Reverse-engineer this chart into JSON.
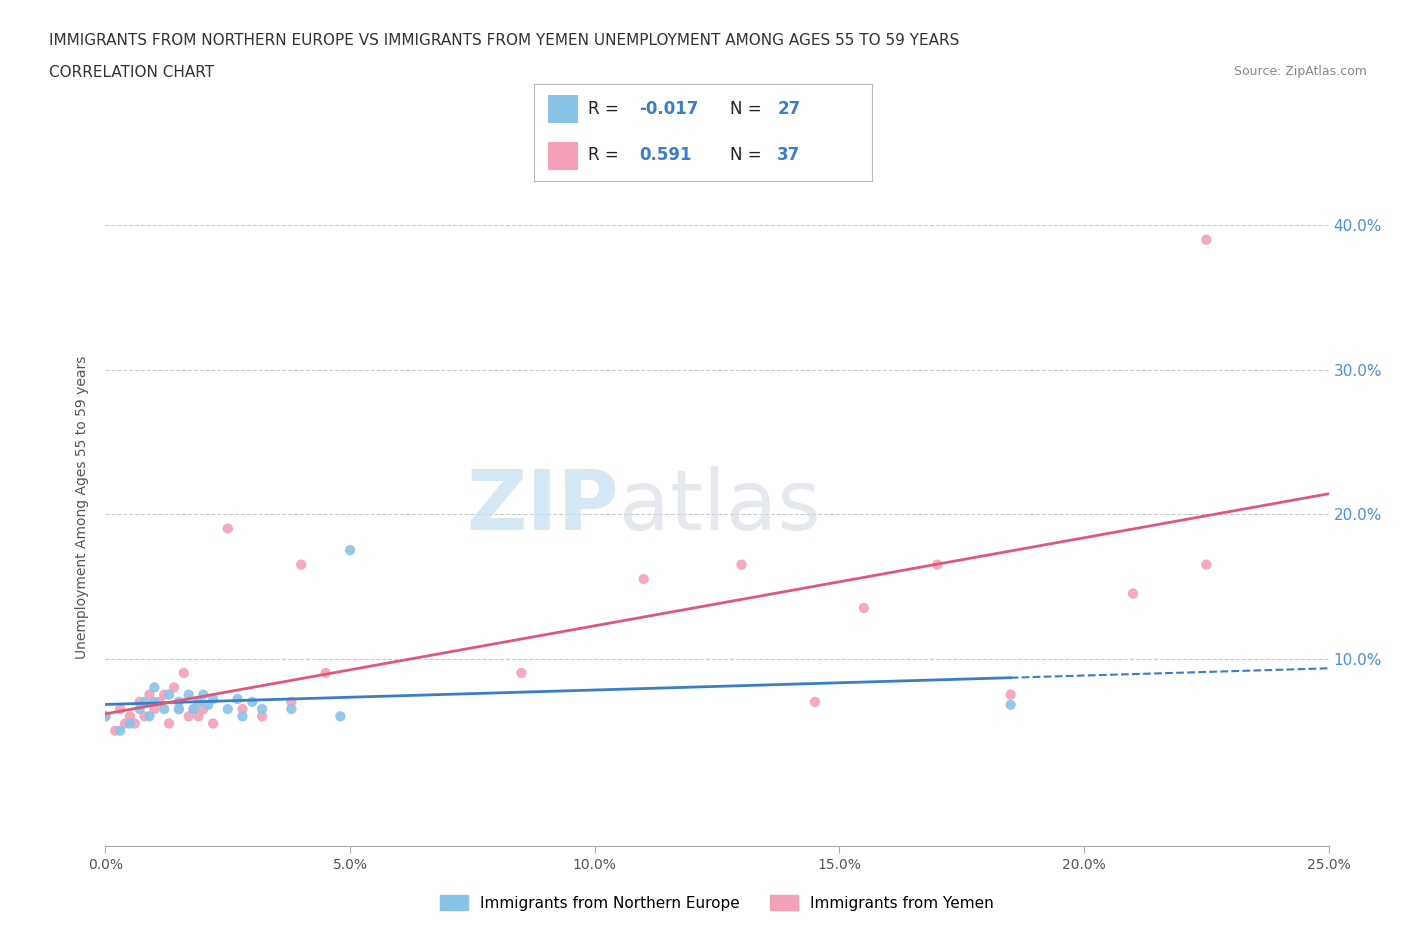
{
  "title_line1": "IMMIGRANTS FROM NORTHERN EUROPE VS IMMIGRANTS FROM YEMEN UNEMPLOYMENT AMONG AGES 55 TO 59 YEARS",
  "title_line2": "CORRELATION CHART",
  "source": "Source: ZipAtlas.com",
  "ylabel": "Unemployment Among Ages 55 to 59 years",
  "xlim": [
    0.0,
    0.25
  ],
  "ylim": [
    -0.03,
    0.44
  ],
  "xticks": [
    0.0,
    0.05,
    0.1,
    0.15,
    0.2,
    0.25
  ],
  "xticklabels": [
    "0.0%",
    "5.0%",
    "10.0%",
    "15.0%",
    "20.0%",
    "25.0%"
  ],
  "yticks_right": [
    0.0,
    0.1,
    0.2,
    0.3,
    0.4
  ],
  "yticklabels_right": [
    "",
    "10.0%",
    "20.0%",
    "30.0%",
    "40.0%"
  ],
  "blue_color": "#89C4E8",
  "pink_color": "#F4A0B8",
  "blue_line_color": "#3A7DC9",
  "pink_line_color": "#E05878",
  "blue_line_solid_end": 0.185,
  "blue_line_dashed_start": 0.185,
  "blue_line_dashed_end": 0.25,
  "R_blue": -0.017,
  "N_blue": 27,
  "R_pink": 0.591,
  "N_pink": 37,
  "legend_label_blue": "Immigrants from Northern Europe",
  "legend_label_pink": "Immigrants from Yemen",
  "blue_scatter_x": [
    0.0,
    0.003,
    0.005,
    0.007,
    0.008,
    0.009,
    0.01,
    0.01,
    0.012,
    0.013,
    0.015,
    0.015,
    0.017,
    0.018,
    0.019,
    0.02,
    0.021,
    0.022,
    0.025,
    0.027,
    0.028,
    0.03,
    0.032,
    0.038,
    0.05,
    0.185,
    0.048
  ],
  "blue_scatter_y": [
    0.06,
    0.05,
    0.055,
    0.065,
    0.07,
    0.06,
    0.07,
    0.08,
    0.065,
    0.075,
    0.065,
    0.07,
    0.075,
    0.065,
    0.07,
    0.075,
    0.068,
    0.072,
    0.065,
    0.072,
    0.06,
    0.07,
    0.065,
    0.065,
    0.175,
    0.068,
    0.06
  ],
  "pink_scatter_x": [
    0.0,
    0.002,
    0.003,
    0.004,
    0.005,
    0.006,
    0.007,
    0.008,
    0.009,
    0.01,
    0.011,
    0.012,
    0.013,
    0.014,
    0.015,
    0.016,
    0.017,
    0.018,
    0.019,
    0.02,
    0.022,
    0.025,
    0.028,
    0.032,
    0.038,
    0.04,
    0.045,
    0.085,
    0.11,
    0.13,
    0.145,
    0.155,
    0.17,
    0.185,
    0.21,
    0.225,
    0.225
  ],
  "pink_scatter_y": [
    0.06,
    0.05,
    0.065,
    0.055,
    0.06,
    0.055,
    0.07,
    0.06,
    0.075,
    0.065,
    0.07,
    0.075,
    0.055,
    0.08,
    0.065,
    0.09,
    0.06,
    0.065,
    0.06,
    0.065,
    0.055,
    0.19,
    0.065,
    0.06,
    0.07,
    0.165,
    0.09,
    0.09,
    0.155,
    0.165,
    0.07,
    0.135,
    0.165,
    0.075,
    0.145,
    0.165,
    0.39
  ],
  "grid_color": "#CCCCCC",
  "bg_color": "#FFFFFF",
  "watermark_ZIP": "ZIP",
  "watermark_atlas": "atlas"
}
